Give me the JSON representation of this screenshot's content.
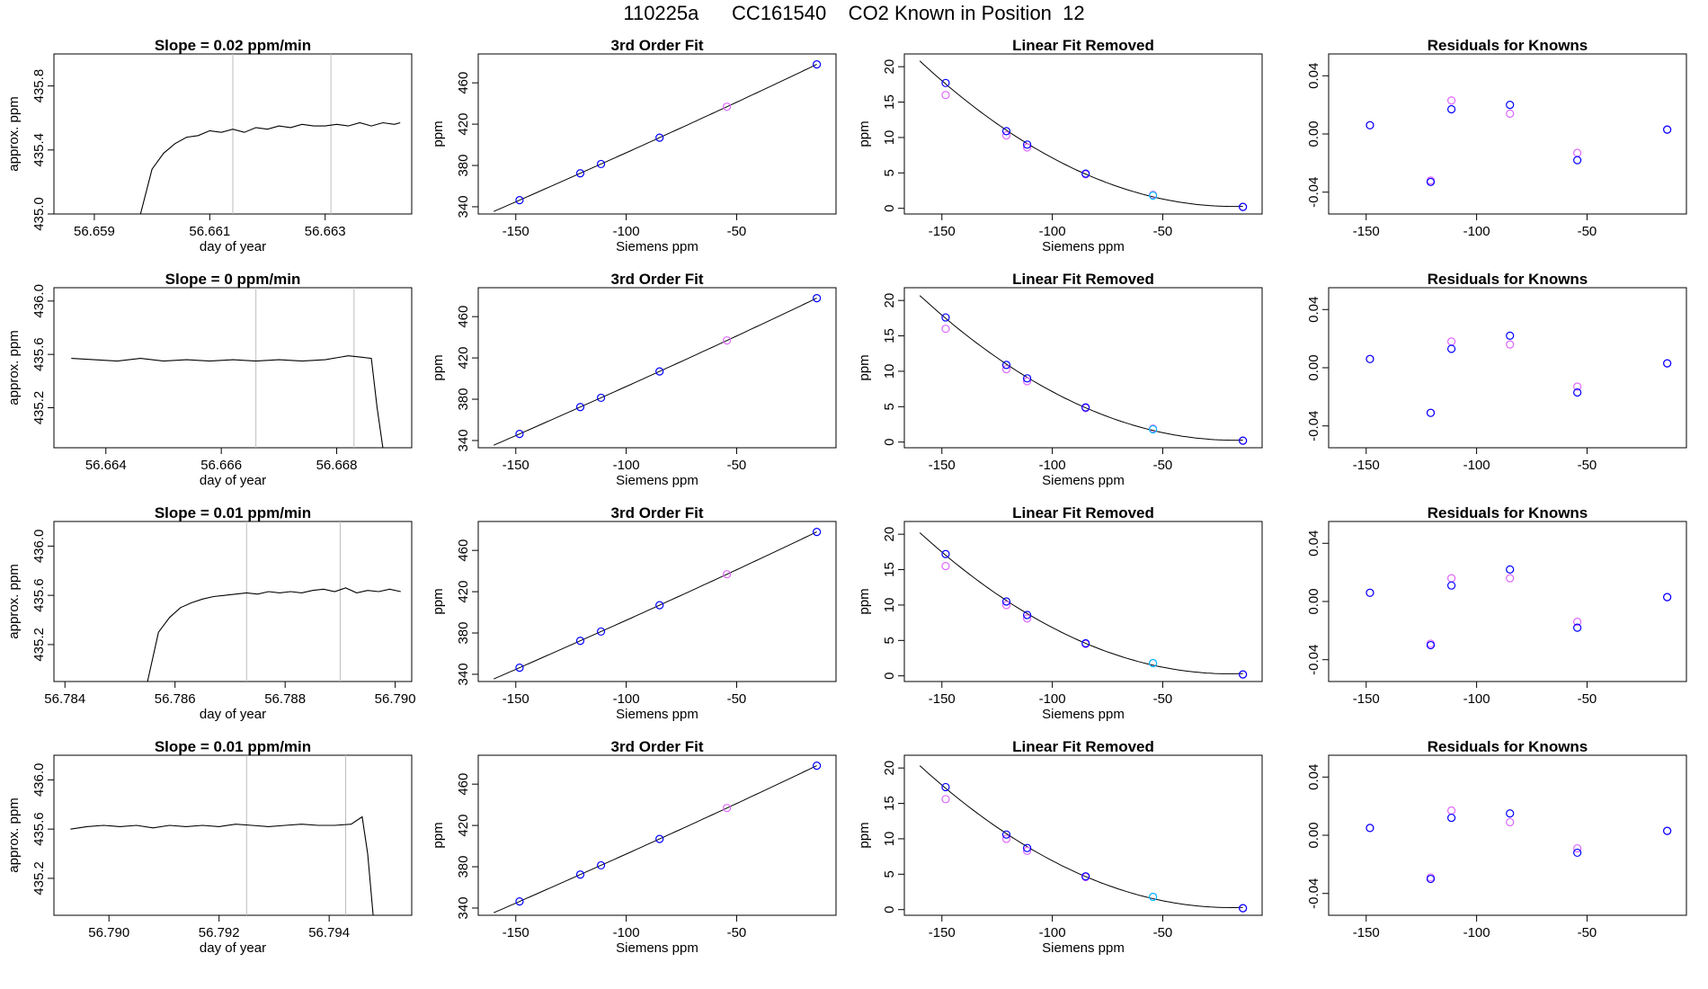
{
  "page_title": "110225a      CC161540    CO2 Known in Position  12",
  "colors": {
    "axis": "#000000",
    "line": "#000000",
    "vline": "#bebebe",
    "blue": "#0000ff",
    "magenta": "#e066ff",
    "cyan": "#00bfff",
    "red": "#ff0000"
  },
  "chart_data": [
    {
      "type": "line",
      "row": 0,
      "col": 0,
      "title": "Slope =  0.02  ppm/min",
      "xlabel": "day of year",
      "ylabel": "approx. ppm",
      "xlim": [
        56.6583,
        56.6645
      ],
      "ylim": [
        435.0,
        436.0
      ],
      "xticks": [
        56.659,
        56.661,
        56.663
      ],
      "xticklabels": [
        "56.659",
        "56.661",
        "56.663"
      ],
      "yticks": [
        435.0,
        435.4,
        435.8
      ],
      "yticklabels": [
        "435.0",
        "435.4",
        "435.8"
      ],
      "vlines": [
        56.6614,
        56.6631
      ],
      "x": [
        56.6598,
        56.66,
        56.6602,
        56.6604,
        56.6606,
        56.6608,
        56.661,
        56.6612,
        56.6614,
        56.6616,
        56.6618,
        56.662,
        56.6622,
        56.6624,
        56.6626,
        56.6628,
        56.663,
        56.6632,
        56.6634,
        56.6636,
        56.6638,
        56.664,
        56.6642,
        56.6643
      ],
      "y": [
        435.0,
        435.28,
        435.38,
        435.44,
        435.48,
        435.49,
        435.52,
        435.51,
        435.53,
        435.51,
        435.54,
        435.53,
        435.55,
        435.54,
        435.56,
        435.55,
        435.55,
        435.56,
        435.55,
        435.57,
        435.55,
        435.57,
        435.56,
        435.57
      ]
    },
    {
      "type": "line",
      "row": 1,
      "col": 0,
      "title": "Slope =  0  ppm/min",
      "xlabel": "day of year",
      "ylabel": "approx. ppm",
      "xlim": [
        56.6631,
        56.6693
      ],
      "ylim": [
        434.9,
        436.1
      ],
      "xticks": [
        56.664,
        56.666,
        56.668
      ],
      "xticklabels": [
        "56.664",
        "56.666",
        "56.668"
      ],
      "yticks": [
        435.2,
        435.6,
        436.0
      ],
      "yticklabels": [
        "435.2",
        "435.6",
        "436.0"
      ],
      "vlines": [
        56.6666,
        56.6683
      ],
      "x": [
        56.6634,
        56.6638,
        56.6642,
        56.6646,
        56.665,
        56.6654,
        56.6658,
        56.6662,
        56.6666,
        56.667,
        56.6674,
        56.6678,
        56.6682,
        56.6684,
        56.6686,
        56.6687,
        56.6688
      ],
      "y": [
        435.57,
        435.56,
        435.55,
        435.57,
        435.55,
        435.56,
        435.55,
        435.56,
        435.55,
        435.56,
        435.55,
        435.56,
        435.59,
        435.58,
        435.57,
        435.2,
        434.9
      ]
    },
    {
      "type": "line",
      "row": 2,
      "col": 0,
      "title": "Slope =  0.01  ppm/min",
      "xlabel": "day of year",
      "ylabel": "approx. ppm",
      "xlim": [
        56.7838,
        56.7903
      ],
      "ylim": [
        434.9,
        436.2
      ],
      "xticks": [
        56.784,
        56.786,
        56.788,
        56.79
      ],
      "xticklabels": [
        "56.784",
        "56.786",
        "56.788",
        "56.790"
      ],
      "yticks": [
        435.2,
        435.6,
        436.0
      ],
      "yticklabels": [
        "435.2",
        "435.6",
        "436.0"
      ],
      "vlines": [
        56.7873,
        56.789
      ],
      "x": [
        56.7855,
        56.7857,
        56.7859,
        56.7861,
        56.7863,
        56.7865,
        56.7867,
        56.7869,
        56.7871,
        56.7873,
        56.7875,
        56.7877,
        56.7879,
        56.7881,
        56.7883,
        56.7885,
        56.7887,
        56.7889,
        56.7891,
        56.7893,
        56.7895,
        56.7897,
        56.7899,
        56.7901
      ],
      "y": [
        434.9,
        435.3,
        435.42,
        435.5,
        435.54,
        435.57,
        435.59,
        435.6,
        435.61,
        435.62,
        435.61,
        435.63,
        435.62,
        435.63,
        435.62,
        435.64,
        435.65,
        435.63,
        435.66,
        435.62,
        435.64,
        435.63,
        435.65,
        435.63
      ]
    },
    {
      "type": "line",
      "row": 3,
      "col": 0,
      "title": "Slope =  0.01  ppm/min",
      "xlabel": "day of year",
      "ylabel": "approx. ppm",
      "xlim": [
        56.789,
        56.7955
      ],
      "ylim": [
        434.9,
        436.2
      ],
      "xticks": [
        56.79,
        56.792,
        56.794
      ],
      "xticklabels": [
        "56.790",
        "56.792",
        "56.794"
      ],
      "yticks": [
        435.2,
        435.6,
        436.0
      ],
      "yticklabels": [
        "435.2",
        "435.6",
        "436.0"
      ],
      "vlines": [
        56.7925,
        56.7943
      ],
      "x": [
        56.7893,
        56.7896,
        56.7899,
        56.7902,
        56.7905,
        56.7908,
        56.7911,
        56.7914,
        56.7917,
        56.792,
        56.7923,
        56.7926,
        56.7929,
        56.7932,
        56.7935,
        56.7938,
        56.7941,
        56.7944,
        56.7946,
        56.7947,
        56.7948
      ],
      "y": [
        435.6,
        435.62,
        435.63,
        435.62,
        435.63,
        435.61,
        435.63,
        435.62,
        435.63,
        435.62,
        435.64,
        435.63,
        435.62,
        435.63,
        435.64,
        435.63,
        435.63,
        435.64,
        435.7,
        435.4,
        434.9
      ]
    },
    {
      "type": "scatter",
      "row": 0,
      "col": 1,
      "title": "3rd Order Fit",
      "xlabel": "Siemens ppm",
      "ylabel": "ppm",
      "xlim": [
        -167,
        -5
      ],
      "ylim": [
        333,
        488
      ],
      "xticks": [
        -150,
        -100,
        -50
      ],
      "yticks": [
        340,
        380,
        420,
        460
      ],
      "fit": "cubic",
      "x": [
        -148.3,
        -120.8,
        -111.4,
        -84.9,
        -54.4,
        -13.7
      ],
      "y": [
        346.4,
        372.4,
        381.4,
        406.9,
        436.9,
        477.9
      ]
    },
    {
      "type": "scatter",
      "row": 1,
      "col": 1,
      "title": "3rd Order Fit",
      "xlabel": "Siemens ppm",
      "ylabel": "ppm",
      "xlim": [
        -167,
        -5
      ],
      "ylim": [
        333,
        488
      ],
      "xticks": [
        -150,
        -100,
        -50
      ],
      "yticks": [
        340,
        380,
        420,
        460
      ],
      "fit": "cubic",
      "x": [
        -148.3,
        -120.8,
        -111.4,
        -84.9,
        -54.4,
        -13.7
      ],
      "y": [
        346.4,
        372.4,
        381.4,
        406.9,
        436.9,
        477.9
      ]
    },
    {
      "type": "scatter",
      "row": 2,
      "col": 1,
      "title": "3rd Order Fit",
      "xlabel": "Siemens ppm",
      "ylabel": "ppm",
      "xlim": [
        -167,
        -5
      ],
      "ylim": [
        333,
        488
      ],
      "xticks": [
        -150,
        -100,
        -50
      ],
      "yticks": [
        340,
        380,
        420,
        460
      ],
      "fit": "cubic",
      "x": [
        -148.3,
        -120.8,
        -111.4,
        -84.9,
        -54.4,
        -13.7
      ],
      "y": [
        346.4,
        372.4,
        381.4,
        406.9,
        436.9,
        477.9
      ]
    },
    {
      "type": "scatter",
      "row": 3,
      "col": 1,
      "title": "3rd Order Fit",
      "xlabel": "Siemens ppm",
      "ylabel": "ppm",
      "xlim": [
        -167,
        -5
      ],
      "ylim": [
        333,
        488
      ],
      "xticks": [
        -150,
        -100,
        -50
      ],
      "yticks": [
        340,
        380,
        420,
        460
      ],
      "fit": "cubic",
      "x": [
        -148.3,
        -120.8,
        -111.4,
        -84.9,
        -54.4,
        -13.7
      ],
      "y": [
        346.4,
        372.4,
        381.4,
        406.9,
        436.9,
        477.9
      ]
    },
    {
      "type": "scatter",
      "row": 0,
      "col": 2,
      "title": "Linear Fit Removed",
      "xlabel": "Siemens ppm",
      "ylabel": "ppm",
      "xlim": [
        -167,
        -5
      ],
      "ylim": [
        -0.8,
        21.8
      ],
      "xticks": [
        -150,
        -100,
        -50
      ],
      "yticks": [
        0,
        5,
        10,
        15,
        20
      ],
      "fit": "quadratic",
      "x": [
        -148.3,
        -120.8,
        -111.4,
        -84.9,
        -54.4,
        -13.7
      ],
      "y_blue": [
        17.7,
        10.9,
        9.0,
        4.9,
        1.8,
        0.2
      ],
      "y_magenta": [
        16.0,
        10.3,
        8.6,
        4.8,
        1.9,
        0.2
      ]
    },
    {
      "type": "scatter",
      "row": 1,
      "col": 2,
      "title": "Linear Fit Removed",
      "xlabel": "Siemens ppm",
      "ylabel": "ppm",
      "xlim": [
        -167,
        -5
      ],
      "ylim": [
        -0.8,
        21.8
      ],
      "xticks": [
        -150,
        -100,
        -50
      ],
      "yticks": [
        0,
        5,
        10,
        15,
        20
      ],
      "fit": "quadratic",
      "x": [
        -148.3,
        -120.8,
        -111.4,
        -84.9,
        -54.4,
        -13.7
      ],
      "y_blue": [
        17.6,
        10.9,
        9.0,
        4.9,
        1.8,
        0.2
      ],
      "y_magenta": [
        16.0,
        10.3,
        8.6,
        4.8,
        1.9,
        0.2
      ]
    },
    {
      "type": "scatter",
      "row": 2,
      "col": 2,
      "title": "Linear Fit Removed",
      "xlabel": "Siemens ppm",
      "ylabel": "ppm",
      "xlim": [
        -167,
        -5
      ],
      "ylim": [
        -0.8,
        21.8
      ],
      "xticks": [
        -150,
        -100,
        -50
      ],
      "yticks": [
        0,
        5,
        10,
        15,
        20
      ],
      "fit": "quadratic",
      "x": [
        -148.3,
        -120.8,
        -111.4,
        -84.9,
        -54.4,
        -13.7
      ],
      "y_blue": [
        17.2,
        10.5,
        8.6,
        4.6,
        1.8,
        0.2
      ],
      "y_magenta": [
        15.5,
        10.0,
        8.1,
        4.5,
        1.8,
        0.2
      ]
    },
    {
      "type": "scatter",
      "row": 3,
      "col": 2,
      "title": "Linear Fit Removed",
      "xlabel": "Siemens ppm",
      "ylabel": "ppm",
      "xlim": [
        -167,
        -5
      ],
      "ylim": [
        -0.8,
        21.8
      ],
      "xticks": [
        -150,
        -100,
        -50
      ],
      "yticks": [
        0,
        5,
        10,
        15,
        20
      ],
      "fit": "quadratic",
      "x": [
        -148.3,
        -120.8,
        -111.4,
        -84.9,
        -54.4,
        -13.7
      ],
      "y_blue": [
        17.3,
        10.6,
        8.7,
        4.7,
        1.8,
        0.2
      ],
      "y_magenta": [
        15.6,
        10.0,
        8.3,
        4.6,
        1.8,
        0.2
      ]
    },
    {
      "type": "scatter",
      "row": 0,
      "col": 3,
      "title": "Residuals for Knowns",
      "xlabel": "",
      "ylabel": "",
      "xlim": [
        -167,
        -5
      ],
      "ylim": [
        -0.055,
        0.055
      ],
      "xticks": [
        -150,
        -100,
        -50
      ],
      "yticks": [
        -0.04,
        0.0,
        0.04
      ],
      "yticklabels": [
        "-0.04",
        "0.00",
        "0.04"
      ],
      "x": [
        -148.3,
        -120.8,
        -111.4,
        -84.9,
        -54.4,
        -13.7
      ],
      "y_blue": [
        0.006,
        -0.033,
        0.017,
        0.02,
        -0.018,
        0.003
      ],
      "y_magenta": [
        0.006,
        -0.032,
        0.023,
        0.014,
        -0.013,
        0.003
      ]
    },
    {
      "type": "scatter",
      "row": 1,
      "col": 3,
      "title": "Residuals for Knowns",
      "xlabel": "",
      "ylabel": "",
      "xlim": [
        -167,
        -5
      ],
      "ylim": [
        -0.055,
        0.055
      ],
      "xticks": [
        -150,
        -100,
        -50
      ],
      "yticks": [
        -0.04,
        0.0,
        0.04
      ],
      "yticklabels": [
        "-0.04",
        "0.00",
        "0.04"
      ],
      "x": [
        -148.3,
        -120.8,
        -111.4,
        -84.9,
        -54.4,
        -13.7
      ],
      "y_blue": [
        0.006,
        -0.031,
        0.013,
        0.022,
        -0.017,
        0.003
      ],
      "y_magenta": [
        0.006,
        -0.031,
        0.018,
        0.016,
        -0.013,
        0.003
      ]
    },
    {
      "type": "scatter",
      "row": 2,
      "col": 3,
      "title": "Residuals for Knowns",
      "xlabel": "",
      "ylabel": "",
      "xlim": [
        -167,
        -5
      ],
      "ylim": [
        -0.055,
        0.055
      ],
      "xticks": [
        -150,
        -100,
        -50
      ],
      "yticks": [
        -0.04,
        0.0,
        0.04
      ],
      "yticklabels": [
        "-0.04",
        "0.00",
        "0.04"
      ],
      "x": [
        -148.3,
        -120.8,
        -111.4,
        -84.9,
        -54.4,
        -13.7
      ],
      "y_blue": [
        0.006,
        -0.03,
        0.011,
        0.022,
        -0.018,
        0.003
      ],
      "y_magenta": [
        0.006,
        -0.029,
        0.016,
        0.016,
        -0.014,
        0.003
      ]
    },
    {
      "type": "scatter",
      "row": 3,
      "col": 3,
      "title": "Residuals for Knowns",
      "xlabel": "",
      "ylabel": "",
      "xlim": [
        -167,
        -5
      ],
      "ylim": [
        -0.055,
        0.055
      ],
      "xticks": [
        -150,
        -100,
        -50
      ],
      "yticks": [
        -0.04,
        0.0,
        0.04
      ],
      "yticklabels": [
        "-0.04",
        "0.00",
        "0.04"
      ],
      "x": [
        -148.3,
        -120.8,
        -111.4,
        -84.9,
        -54.4,
        -13.7
      ],
      "y_blue": [
        0.005,
        -0.03,
        0.012,
        0.015,
        -0.012,
        0.003
      ],
      "y_magenta": [
        0.005,
        -0.029,
        0.017,
        0.009,
        -0.009,
        0.003
      ]
    }
  ]
}
